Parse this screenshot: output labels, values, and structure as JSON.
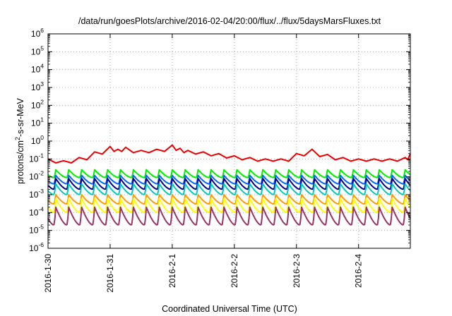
{
  "chart_data": {
    "type": "line",
    "title": "/data/run/goesPlots/archive/2016-02-04/20:00/flux/../flux/5daysMarsFluxes.txt",
    "xlabel": "Coordinated Universal Time (UTC)",
    "ylabel": {
      "prefix": "protons/cm",
      "sup": "2",
      "suffix": "-s-sr-MeV"
    },
    "yscale": "log",
    "ylim": [
      1e-06,
      1000000.0
    ],
    "xlim": [
      "2016-01-30T00:00",
      "2016-02-04T20:00"
    ],
    "grid": true,
    "legend": "none",
    "x_ticks": [
      {
        "date": "2016-01-30",
        "label": "2016-1-30"
      },
      {
        "date": "2016-01-31",
        "label": "2016-1-31"
      },
      {
        "date": "2016-02-01",
        "label": "2016-2-1"
      },
      {
        "date": "2016-02-02",
        "label": "2016-2-2"
      },
      {
        "date": "2016-02-03",
        "label": "2016-2-3"
      },
      {
        "date": "2016-02-04",
        "label": "2016-2-4"
      }
    ],
    "y_ticks": [
      {
        "value": 1e-06,
        "base": "10",
        "exp": "-6"
      },
      {
        "value": 1e-05,
        "base": "10",
        "exp": "-5"
      },
      {
        "value": 0.0001,
        "base": "10",
        "exp": "-4"
      },
      {
        "value": 0.001,
        "base": "10",
        "exp": "-3"
      },
      {
        "value": 0.01,
        "base": "10",
        "exp": "-2"
      },
      {
        "value": 0.1,
        "base": "10",
        "exp": "-1"
      },
      {
        "value": 1.0,
        "base": "10",
        "exp": "0"
      },
      {
        "value": 10.0,
        "base": "10",
        "exp": "1"
      },
      {
        "value": 100.0,
        "base": "10",
        "exp": "2"
      },
      {
        "value": 1000.0,
        "base": "10",
        "exp": "3"
      },
      {
        "value": 10000.0,
        "base": "10",
        "exp": "4"
      },
      {
        "value": 100000.0,
        "base": "10",
        "exp": "5"
      },
      {
        "value": 1000000.0,
        "base": "10",
        "exp": "6"
      }
    ],
    "series": [
      {
        "color": "#ee0000",
        "x": [
          "2016-01-30T00:00",
          "2016-01-30T06:00",
          "2016-01-30T12:00",
          "2016-01-30T18:00",
          "2016-01-31T00:00",
          "2016-01-31T03:00",
          "2016-01-31T06:00",
          "2016-01-31T12:00",
          "2016-01-31T18:00",
          "2016-02-01T00:00",
          "2016-02-01T03:00",
          "2016-02-01T06:00",
          "2016-02-01T12:00",
          "2016-02-01T18:00",
          "2016-02-02T00:00",
          "2016-02-02T06:00",
          "2016-02-02T12:00",
          "2016-02-02T18:00",
          "2016-02-03T00:00",
          "2016-02-03T06:00",
          "2016-02-03T12:00",
          "2016-02-03T18:00",
          "2016-02-04T00:00",
          "2016-02-04T06:00",
          "2016-02-04T12:00",
          "2016-02-04T18:00",
          "2016-02-04T20:00"
        ],
        "y": [
          0.1,
          0.08,
          0.12,
          0.25,
          0.5,
          0.35,
          0.45,
          0.3,
          0.35,
          0.6,
          0.4,
          0.3,
          0.25,
          0.2,
          0.15,
          0.12,
          0.1,
          0.1,
          0.2,
          0.35,
          0.18,
          0.12,
          0.1,
          0.1,
          0.1,
          0.12,
          0.2
        ]
      },
      {
        "color": "#00ee00",
        "x": [
          "2016-01-30T00:00",
          "2016-02-04T20:00"
        ],
        "y_min": 0.009,
        "y_max": 0.025
      },
      {
        "color": "#0066ff",
        "x": [
          "2016-01-30T00:00",
          "2016-02-04T20:00"
        ],
        "y_min": 0.004,
        "y_max": 0.012
      },
      {
        "color": "#00008b",
        "x": [
          "2016-01-30T00:00",
          "2016-02-04T20:00"
        ],
        "y_min": 0.002,
        "y_max": 0.008
      },
      {
        "color": "#00ccbb",
        "x": [
          "2016-01-30T00:00",
          "2016-02-04T20:00"
        ],
        "y_min": 0.001,
        "y_max": 0.004
      },
      {
        "color": "#ff9900",
        "x": [
          "2016-01-30T00:00",
          "2016-02-04T20:00"
        ],
        "y_min": 0.0003,
        "y_max": 0.001
      },
      {
        "color": "#ffff00",
        "x": [
          "2016-01-30T00:00",
          "2016-02-04T20:00"
        ],
        "y_min": 0.0001,
        "y_max": 0.0006
      },
      {
        "color": "#993366",
        "x": [
          "2016-01-30T00:00",
          "2016-02-04T20:00"
        ],
        "y_min": 2e-05,
        "y_max": 0.0002
      }
    ]
  }
}
